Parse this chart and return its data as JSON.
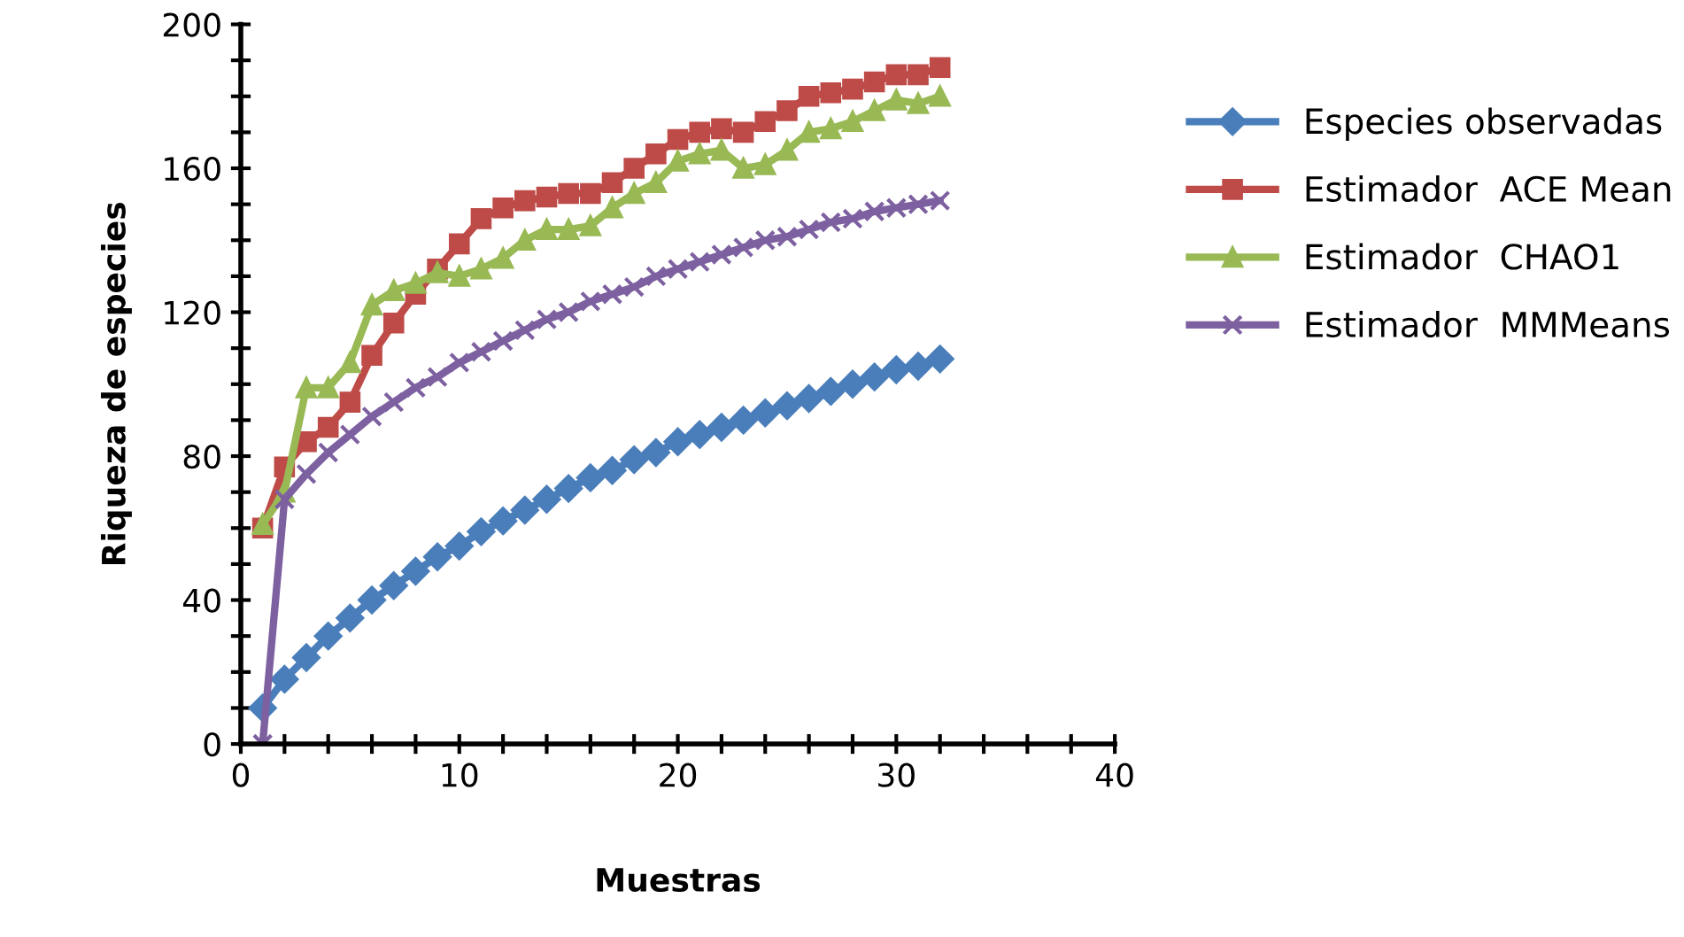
{
  "chart_data": {
    "type": "line",
    "xlabel": "Muestras",
    "ylabel": "Riqueza de especies",
    "x": [
      1,
      2,
      3,
      4,
      5,
      6,
      7,
      8,
      9,
      10,
      11,
      12,
      13,
      14,
      15,
      16,
      17,
      18,
      19,
      20,
      21,
      22,
      23,
      24,
      25,
      26,
      27,
      28,
      29,
      30,
      31,
      32
    ],
    "series": [
      {
        "name": "Especies observadas",
        "color": "#4a7ebb",
        "marker": "diamond",
        "values": [
          10,
          18,
          24,
          30,
          35,
          40,
          44,
          48,
          52,
          55,
          59,
          62,
          65,
          68,
          71,
          74,
          76,
          79,
          81,
          84,
          86,
          88,
          90,
          92,
          94,
          96,
          98,
          100,
          102,
          104,
          105,
          107
        ]
      },
      {
        "name": "Estimador  ACE Mean",
        "color": "#be4b48",
        "marker": "square",
        "values": [
          60,
          77,
          84,
          88,
          95,
          108,
          117,
          125,
          132,
          139,
          146,
          149,
          151,
          152,
          153,
          153,
          156,
          160,
          164,
          168,
          170,
          171,
          170,
          173,
          176,
          180,
          181,
          182,
          184,
          186,
          186,
          188
        ]
      },
      {
        "name": "Estimador  CHAO1",
        "color": "#98b954",
        "marker": "triangle",
        "values": [
          61,
          70,
          99,
          99,
          106,
          122,
          126,
          128,
          131,
          130,
          132,
          135,
          140,
          143,
          143,
          144,
          149,
          153,
          156,
          162,
          164,
          165,
          160,
          161,
          165,
          170,
          171,
          173,
          176,
          179,
          178,
          180
        ]
      },
      {
        "name": "Estimador  MMMeans",
        "color": "#7d60a0",
        "marker": "cross",
        "values": [
          0,
          68,
          75,
          81,
          86,
          91,
          95,
          99,
          102,
          106,
          109,
          112,
          115,
          118,
          120,
          123,
          125,
          127,
          130,
          132,
          134,
          136,
          138,
          140,
          141,
          143,
          145,
          146,
          148,
          149,
          150,
          151
        ]
      }
    ],
    "xlim": [
      0,
      40
    ],
    "ylim": [
      0,
      200
    ],
    "xticks": [
      0,
      {
        "value": 2,
        "label": null
      },
      {
        "value": 4,
        "label": null
      },
      {
        "value": 6,
        "label": null
      },
      {
        "value": 8,
        "label": null
      },
      10,
      {
        "value": 12,
        "label": null
      },
      {
        "value": 14,
        "label": null
      },
      {
        "value": 16,
        "label": null
      },
      {
        "value": 18,
        "label": null
      },
      20,
      {
        "value": 22,
        "label": null
      },
      {
        "value": 24,
        "label": null
      },
      {
        "value": 26,
        "label": null
      },
      {
        "value": 28,
        "label": null
      },
      30,
      {
        "value": 32,
        "label": null
      },
      {
        "value": 34,
        "label": null
      },
      {
        "value": 36,
        "label": null
      },
      {
        "value": 38,
        "label": null
      },
      40
    ],
    "yticks": [
      0,
      {
        "value": 10,
        "label": null
      },
      {
        "value": 20,
        "label": null
      },
      {
        "value": 30,
        "label": null
      },
      40,
      {
        "value": 50,
        "label": null
      },
      {
        "value": 60,
        "label": null
      },
      {
        "value": 70,
        "label": null
      },
      80,
      {
        "value": 90,
        "label": null
      },
      {
        "value": 100,
        "label": null
      },
      {
        "value": 110,
        "label": null
      },
      120,
      {
        "value": 130,
        "label": null
      },
      {
        "value": 140,
        "label": null
      },
      {
        "value": 150,
        "label": null
      },
      160,
      {
        "value": 170,
        "label": null
      },
      {
        "value": 180,
        "label": null
      },
      {
        "value": 190,
        "label": null
      },
      200
    ],
    "grid": false,
    "legend": "right",
    "line_style": "solid"
  }
}
